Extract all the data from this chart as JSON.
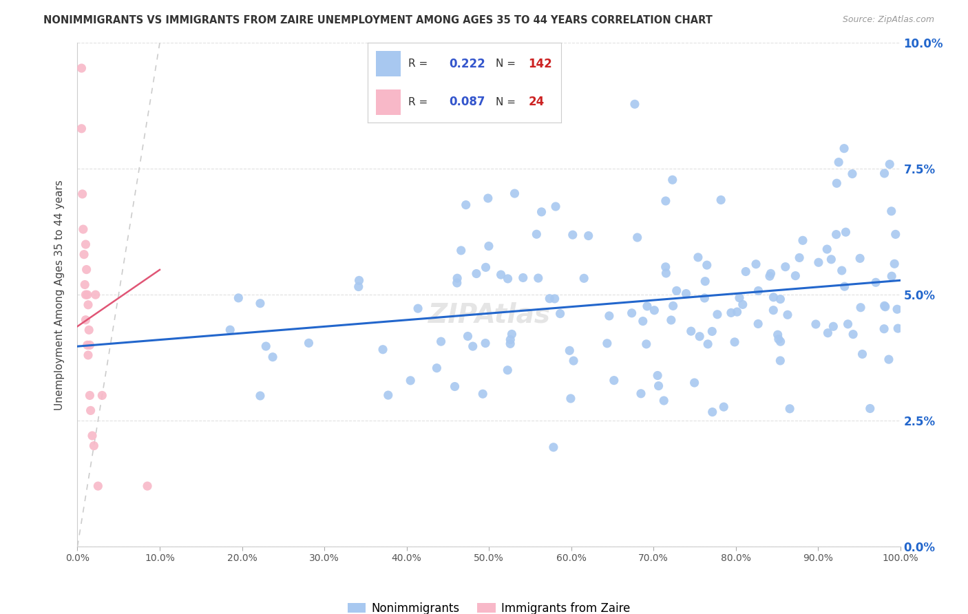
{
  "title": "NONIMMIGRANTS VS IMMIGRANTS FROM ZAIRE UNEMPLOYMENT AMONG AGES 35 TO 44 YEARS CORRELATION CHART",
  "source": "Source: ZipAtlas.com",
  "ylabel": "Unemployment Among Ages 35 to 44 years",
  "xmin": 0.0,
  "xmax": 1.0,
  "ymin": 0.0,
  "ymax": 0.1,
  "nonimmigrant_color": "#a8c8f0",
  "immigrant_color": "#f8b8c8",
  "nonimmigrant_R": 0.222,
  "nonimmigrant_N": 142,
  "immigrant_R": 0.087,
  "immigrant_N": 24,
  "nonimmigrant_line_color": "#2266cc",
  "immigrant_line_color": "#e05575",
  "diagonal_color": "#cccccc",
  "background_color": "#ffffff",
  "grid_color": "#e0e0e0",
  "legend_R_color": "#3355cc",
  "legend_N_color": "#cc2222",
  "yticks": [
    0.0,
    0.025,
    0.05,
    0.075,
    0.1
  ],
  "ytick_labels": [
    "0.0%",
    "2.5%",
    "5.0%",
    "7.5%",
    "10.0%"
  ],
  "xtick_labels": [
    "0.0%",
    "10.0%",
    "20.0%",
    "30.0%",
    "40.0%",
    "50.0%",
    "60.0%",
    "70.0%",
    "80.0%",
    "90.0%",
    "100.0%"
  ]
}
